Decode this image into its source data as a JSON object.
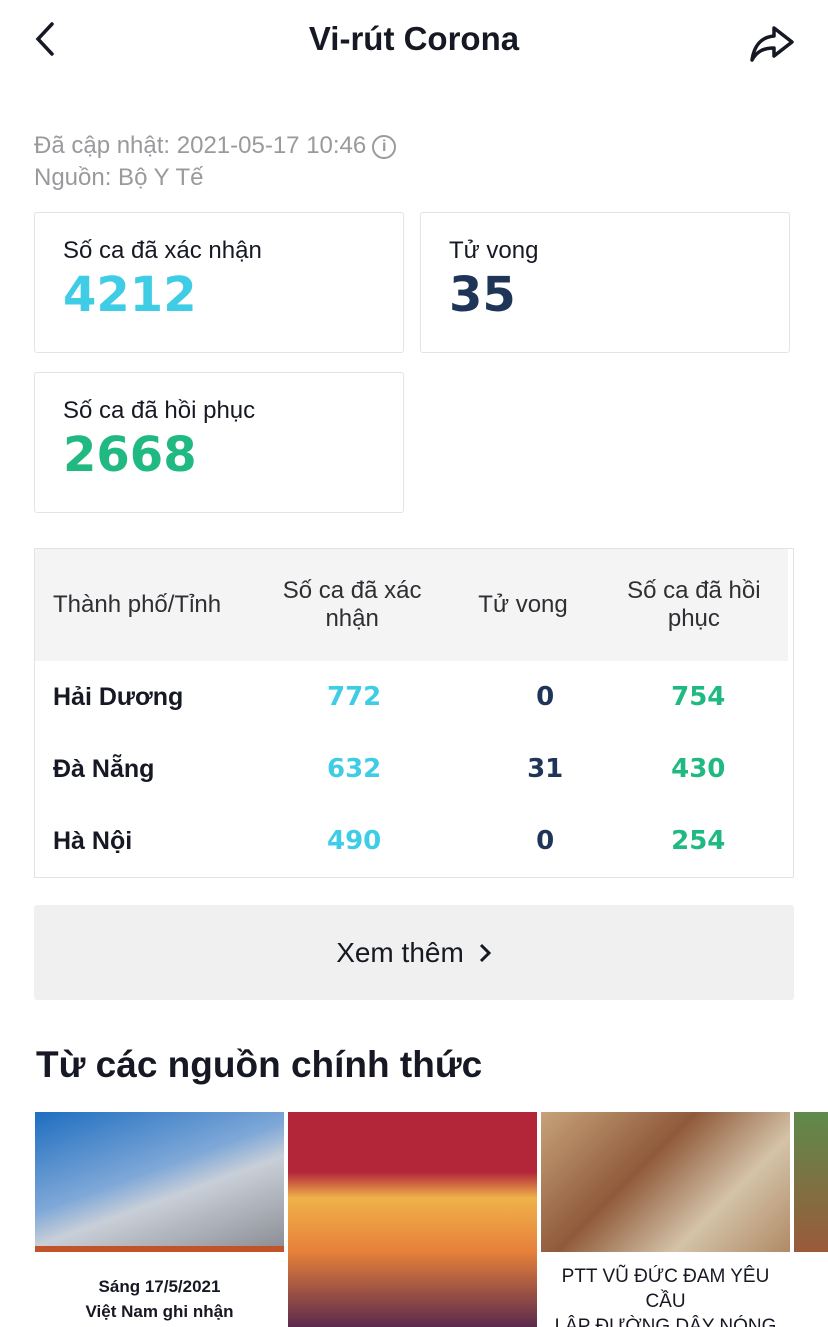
{
  "header": {
    "title": "Vi-rút Corona"
  },
  "meta": {
    "updated": "Đã cập nhật: 2021-05-17 10:46",
    "source": "Nguồn: Bộ Y Tế"
  },
  "stats": {
    "confirmed": {
      "label": "Số ca đã xác nhận",
      "value": "4212",
      "color": "#3fcde6"
    },
    "deaths": {
      "label": "Tử vong",
      "value": "35",
      "color": "#1f3557"
    },
    "recovered": {
      "label": "Số ca đã hồi phục",
      "value": "2668",
      "color": "#20b981"
    }
  },
  "table": {
    "headers": [
      "Thành phố/Tỉnh",
      "Số ca đã xác nhận",
      "Tử vong",
      "Số ca đã hồi phục"
    ],
    "rows": [
      {
        "city": "Hải Dương",
        "confirmed": "772",
        "deaths": "0",
        "recovered": "754"
      },
      {
        "city": "Đà Nẵng",
        "confirmed": "632",
        "deaths": "31",
        "recovered": "430"
      },
      {
        "city": "Hà Nội",
        "confirmed": "490",
        "deaths": "0",
        "recovered": "254"
      }
    ]
  },
  "more_button": "Xem thêm",
  "section_title": "Từ các nguồn chính thức",
  "videos": [
    {
      "caption_1": "Sáng 17/5/2021",
      "caption_2": "Việt Nam ghi nhận"
    },
    {
      "caption_1": "",
      "caption_2": ""
    },
    {
      "caption_1": "PTT VŨ ĐỨC ĐAM YÊU CẦU",
      "caption_2": "LẬP ĐƯỜNG DÂY NÓNG"
    },
    {
      "caption_1": "",
      "caption_2": ""
    }
  ]
}
